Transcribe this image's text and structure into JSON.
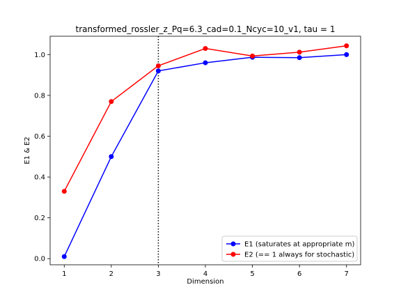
{
  "chart_data": {
    "type": "line",
    "title": "transformed_rossler_z_Pq=6.3_cad=0.1_Ncyc=10_v1, tau = 1",
    "xlabel": "Dimension",
    "ylabel": "E1 & E2",
    "x": [
      1,
      2,
      3,
      4,
      5,
      6,
      7
    ],
    "x_ticks": [
      "1",
      "2",
      "3",
      "4",
      "5",
      "6",
      "7"
    ],
    "y_ticks": [
      "0.0",
      "0.2",
      "0.4",
      "0.6",
      "0.8",
      "1.0"
    ],
    "xlim": [
      0.7,
      7.3
    ],
    "ylim": [
      -0.03,
      1.09
    ],
    "grid": false,
    "legend_position": "lower-right",
    "vline": {
      "x": 3,
      "style": "dotted",
      "color": "#000000"
    },
    "series": [
      {
        "name": "E1 (saturates at appropriate m)",
        "color": "#0000ff",
        "marker": "circle",
        "values": [
          0.01,
          0.5,
          0.92,
          0.96,
          0.987,
          0.985,
          1.0
        ]
      },
      {
        "name": "E2 (== 1 always for stochastic)",
        "color": "#ff0000",
        "marker": "circle",
        "values": [
          0.33,
          0.77,
          0.945,
          1.03,
          0.993,
          1.012,
          1.043
        ]
      }
    ]
  }
}
